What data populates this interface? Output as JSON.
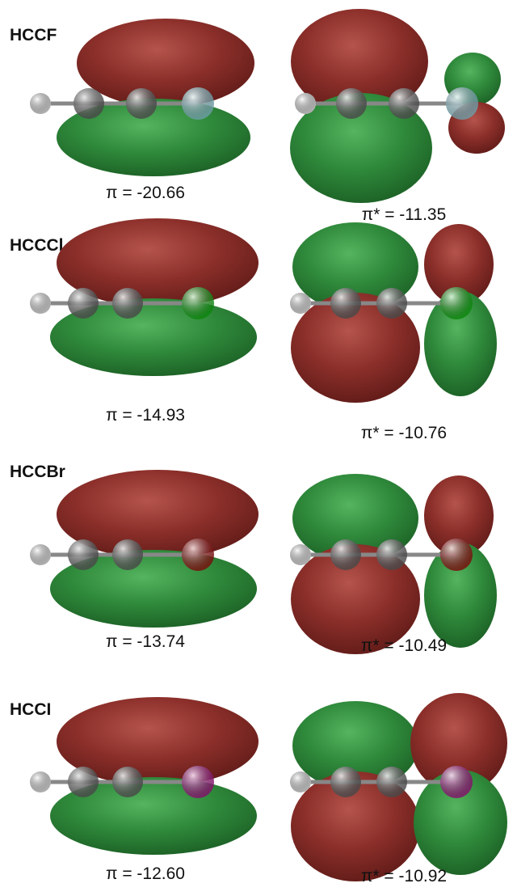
{
  "figure": {
    "rows": [
      {
        "label": "HCCF",
        "pi": "π = -20.66",
        "pi_star": "π* = -11.35"
      },
      {
        "label": "HCCCl",
        "pi": "π = -14.93",
        "pi_star": "π* = -10.76"
      },
      {
        "label": "HCCBr",
        "pi": "π = -13.74",
        "pi_star": "π* = -10.49"
      },
      {
        "label": "HCCI",
        "pi": "π = -12.60",
        "pi_star": "π* = -10.92"
      }
    ]
  }
}
